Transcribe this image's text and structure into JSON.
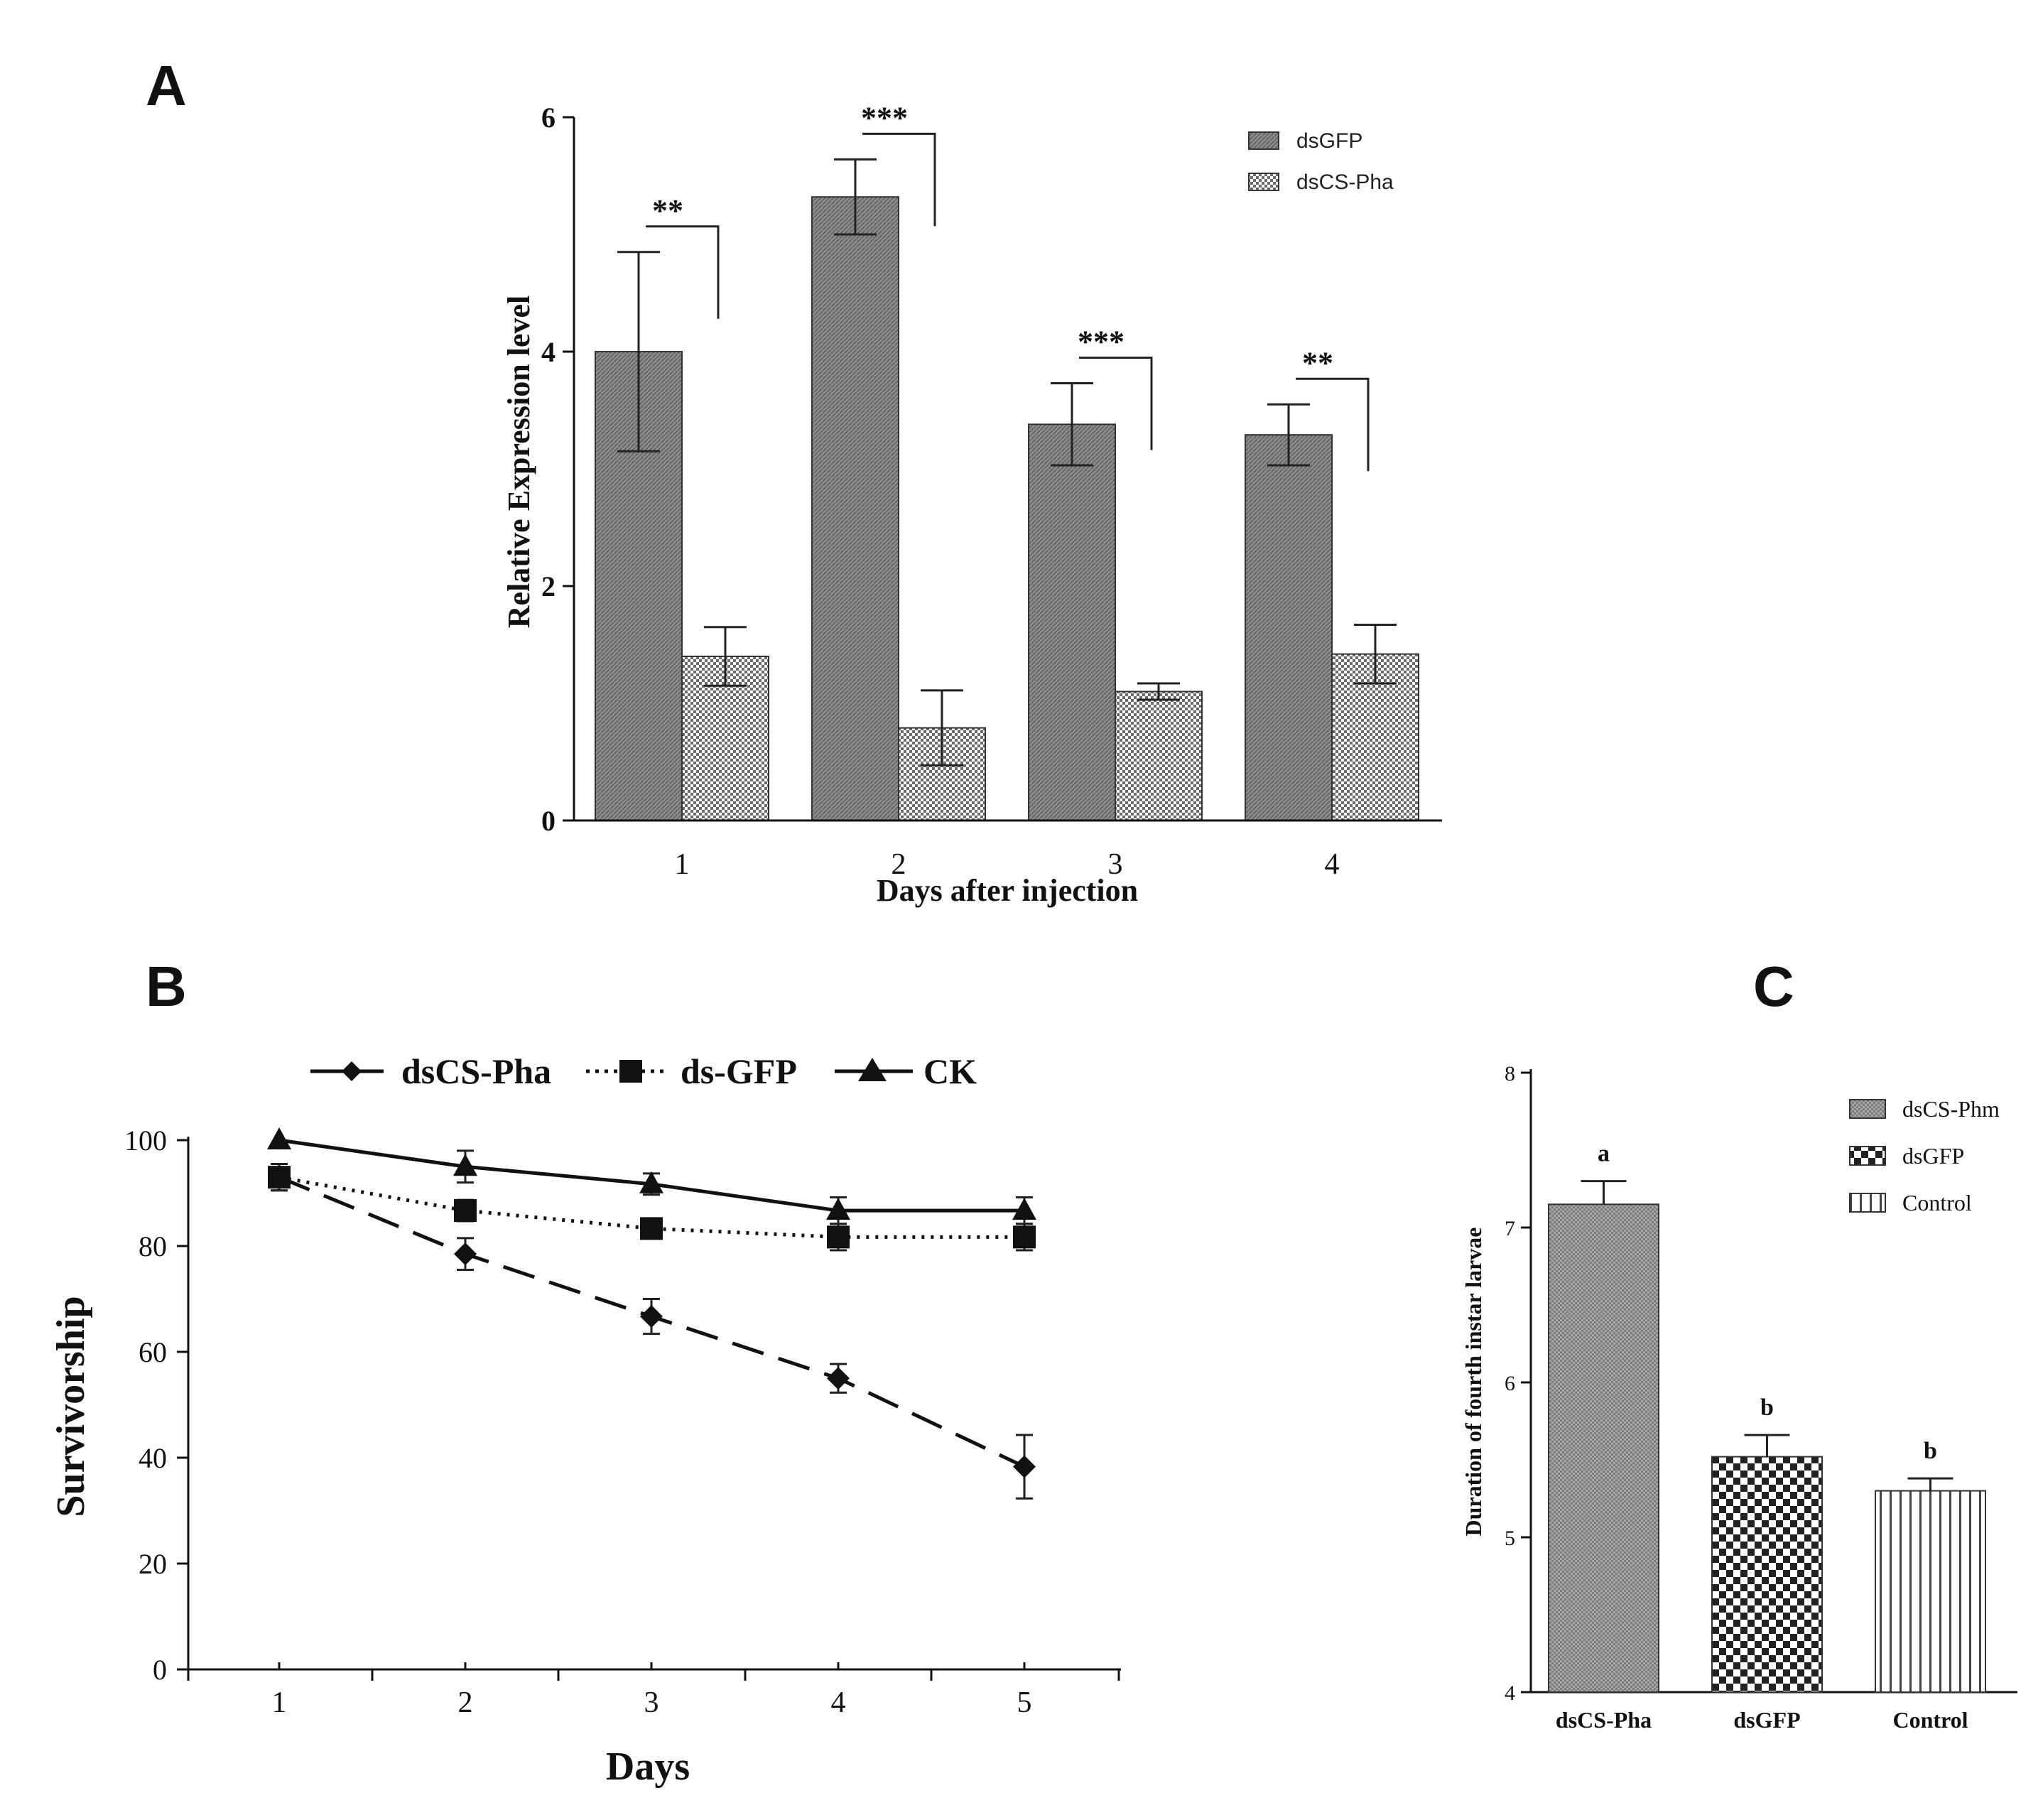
{
  "chart_data": [
    {
      "panel": "A",
      "type": "bar",
      "title": "",
      "xlabel": "Days after injection",
      "ylabel": "Relative Expression level",
      "ylim": [
        0,
        6
      ],
      "yticks": [
        "0",
        "2",
        "4",
        "6"
      ],
      "categories": [
        "1",
        "2",
        "3",
        "4"
      ],
      "series": [
        {
          "name": "dsGFP",
          "values": [
            4.0,
            5.32,
            3.38,
            3.29
          ],
          "errors": [
            0.85,
            0.32,
            0.35,
            0.26
          ]
        },
        {
          "name": "dsCS-Pha",
          "values": [
            1.4,
            0.79,
            1.1,
            1.42
          ],
          "errors": [
            0.25,
            0.32,
            0.07,
            0.25
          ]
        }
      ],
      "significance": [
        "**",
        "***",
        "***",
        "**"
      ],
      "legend_position": "top-right"
    },
    {
      "panel": "B",
      "type": "line",
      "title": "",
      "xlabel": "Days",
      "ylabel": "Survivorship",
      "ylim": [
        0,
        100
      ],
      "yticks": [
        "0",
        "20",
        "40",
        "60",
        "80",
        "100"
      ],
      "x": [
        "1",
        "2",
        "3",
        "4",
        "5"
      ],
      "series": [
        {
          "name": "dsCS-Pha",
          "marker": "diamond",
          "dash": "long-dash",
          "values": [
            93,
            78.5,
            66.7,
            55,
            38.3
          ],
          "errors": [
            2.5,
            3,
            3.3,
            2.7,
            6
          ]
        },
        {
          "name": "ds-GFP",
          "marker": "square",
          "dash": "dotted",
          "values": [
            93,
            86.7,
            83.3,
            81.7,
            81.7
          ],
          "errors": [
            2.5,
            2,
            1.8,
            2.5,
            2.5
          ]
        },
        {
          "name": "CK",
          "marker": "triangle",
          "dash": "solid",
          "values": [
            100,
            95,
            91.7,
            86.7,
            86.7
          ],
          "errors": [
            0,
            3,
            2,
            2.5,
            2.5
          ]
        }
      ],
      "legend_position": "top"
    },
    {
      "panel": "C",
      "type": "bar",
      "title": "",
      "xlabel": "",
      "ylabel": "Duration of fourth instar larvae",
      "ylim": [
        4,
        8
      ],
      "yticks": [
        "4",
        "5",
        "6",
        "7",
        "8"
      ],
      "categories": [
        "dsCS-Pha",
        "dsGFP",
        "Control"
      ],
      "values": [
        7.15,
        5.52,
        5.3
      ],
      "errors": [
        0.15,
        0.14,
        0.08
      ],
      "letters": [
        "a",
        "b",
        "b"
      ],
      "legend": [
        "dsCS-Phm",
        "dsGFP",
        "Control"
      ],
      "legend_position": "top-right"
    }
  ]
}
